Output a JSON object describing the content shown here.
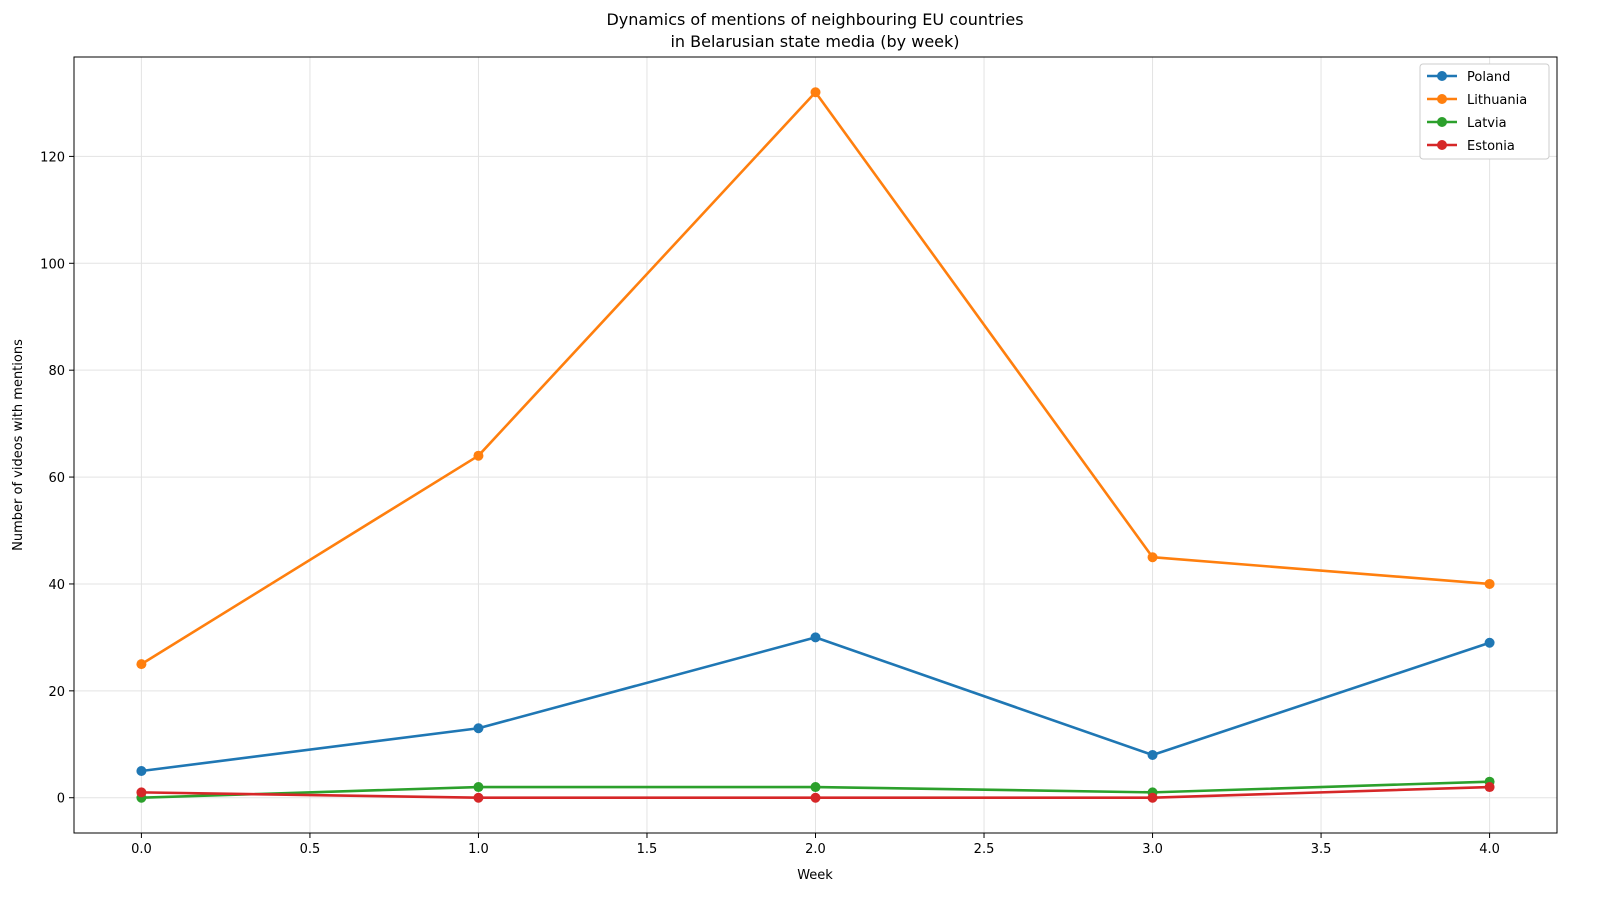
{
  "chart_data": {
    "type": "line",
    "title": "Dynamics of mentions of neighbouring EU countries",
    "subtitle": "in Belarusian state media (by week)",
    "xlabel": "Week",
    "ylabel": "Number of videos with mentions",
    "x": [
      0,
      1,
      2,
      3,
      4
    ],
    "xlim": [
      -0.2,
      4.2
    ],
    "ylim": [
      -6.6,
      138.6
    ],
    "xticks": [
      0.0,
      0.5,
      1.0,
      1.5,
      2.0,
      2.5,
      3.0,
      3.5,
      4.0
    ],
    "xtick_labels": [
      "0.0",
      "0.5",
      "1.0",
      "1.5",
      "2.0",
      "2.5",
      "3.0",
      "3.5",
      "4.0"
    ],
    "yticks": [
      0,
      20,
      40,
      60,
      80,
      100,
      120
    ],
    "ytick_labels": [
      "0",
      "20",
      "40",
      "60",
      "80",
      "100",
      "120"
    ],
    "grid": true,
    "legend_position": "top-right",
    "series": [
      {
        "name": "Poland",
        "color": "#1f77b4",
        "values": [
          5,
          13,
          30,
          8,
          29
        ]
      },
      {
        "name": "Lithuania",
        "color": "#ff7f0e",
        "values": [
          25,
          64,
          132,
          45,
          40
        ]
      },
      {
        "name": "Latvia",
        "color": "#2ca02c",
        "values": [
          0,
          2,
          2,
          1,
          3
        ]
      },
      {
        "name": "Estonia",
        "color": "#d62728",
        "values": [
          1,
          0,
          0,
          0,
          2
        ]
      }
    ]
  }
}
